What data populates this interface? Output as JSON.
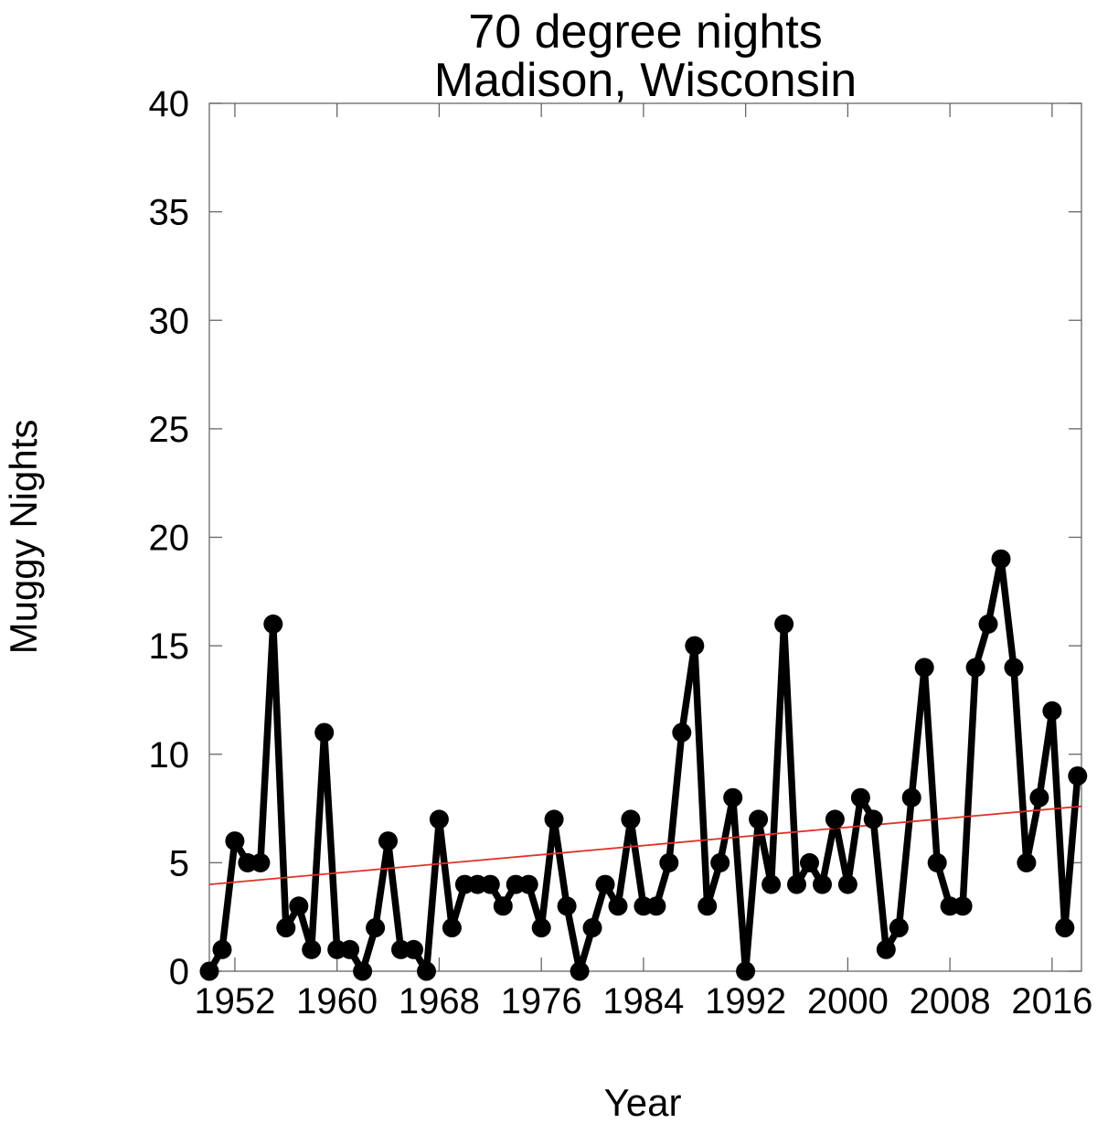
{
  "chart_data": {
    "type": "line",
    "title_line1": "70 degree nights",
    "title_line2": "Madison, Wisconsin",
    "xlabel": "Year",
    "ylabel": "Muggy Nights",
    "xlim": [
      1950,
      2018.3
    ],
    "ylim": [
      0,
      40
    ],
    "x_ticks": [
      1952,
      1960,
      1968,
      1976,
      1984,
      1992,
      2000,
      2008,
      2016
    ],
    "y_ticks": [
      0,
      5,
      10,
      15,
      20,
      25,
      30,
      35,
      40
    ],
    "grid": false,
    "legend": null,
    "marker": "circle",
    "series_color": "#000000",
    "years": [
      1950,
      1951,
      1952,
      1953,
      1954,
      1955,
      1956,
      1957,
      1958,
      1959,
      1960,
      1961,
      1962,
      1963,
      1964,
      1965,
      1966,
      1967,
      1968,
      1969,
      1970,
      1971,
      1972,
      1973,
      1974,
      1975,
      1976,
      1977,
      1978,
      1979,
      1980,
      1981,
      1982,
      1983,
      1984,
      1985,
      1986,
      1987,
      1988,
      1989,
      1990,
      1991,
      1992,
      1993,
      1994,
      1995,
      1996,
      1997,
      1998,
      1999,
      2000,
      2001,
      2002,
      2003,
      2004,
      2005,
      2006,
      2007,
      2008,
      2009,
      2010,
      2011,
      2012,
      2013,
      2014,
      2015,
      2016,
      2017,
      2018
    ],
    "values": [
      0,
      1,
      6,
      5,
      5,
      16,
      2,
      3,
      1,
      11,
      1,
      1,
      0,
      2,
      6,
      1,
      1,
      0,
      7,
      2,
      4,
      4,
      4,
      3,
      4,
      4,
      2,
      7,
      3,
      0,
      2,
      4,
      3,
      7,
      3,
      3,
      5,
      11,
      15,
      3,
      5,
      8,
      0,
      7,
      4,
      16,
      4,
      5,
      4,
      7,
      4,
      8,
      7,
      1,
      2,
      8,
      14,
      5,
      3,
      3,
      14,
      16,
      19,
      14,
      5,
      8,
      12,
      2,
      9
    ],
    "trend_line": {
      "color": "#e03127",
      "x0": 1950,
      "y0": 4.0,
      "x1": 2018.3,
      "y1": 7.6
    },
    "axis_color": "#666666",
    "background_color": "#ffffff"
  }
}
